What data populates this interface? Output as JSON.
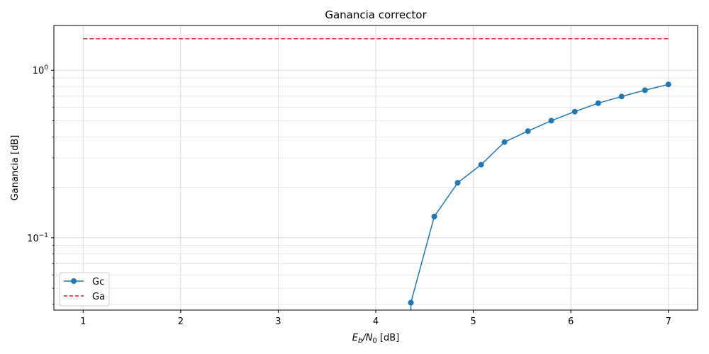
{
  "chart_data": {
    "type": "line",
    "title": "Ganancia corrector",
    "xlabel_main": "E",
    "xlabel_sub1": "b",
    "xlabel_mid": "/N",
    "xlabel_sub2": "0",
    "xlabel_tail": " [dB]",
    "ylabel": "Ganancia [dB]",
    "xlim": [
      0.7,
      7.3
    ],
    "ylim": [
      0.037,
      1.85
    ],
    "yscale": "log",
    "grid": true,
    "grid_minor_y": true,
    "legend_position": "lower-left",
    "x_ticks": [
      1,
      2,
      3,
      4,
      5,
      6,
      7
    ],
    "x_tick_labels": [
      "1",
      "2",
      "3",
      "4",
      "5",
      "6",
      "7"
    ],
    "y_ticks": [
      {
        "value": 0.1,
        "base": "10",
        "exp": "−1"
      },
      {
        "value": 1,
        "base": "10",
        "exp": "0"
      }
    ],
    "series": [
      {
        "name": "Gc",
        "color": "#1f77b4",
        "style": "solid",
        "marker": "circle",
        "x": [
          4.36,
          4.6,
          4.84,
          5.08,
          5.32,
          5.56,
          5.8,
          6.04,
          6.28,
          6.52,
          6.76,
          7.0
        ],
        "y": [
          0.041,
          0.134,
          0.213,
          0.273,
          0.373,
          0.433,
          0.5,
          0.566,
          0.636,
          0.697,
          0.76,
          0.823
        ],
        "extends_below_from_x": 4.36
      },
      {
        "name": "Ga",
        "color": "#d62728",
        "style": "dashed",
        "marker": "none",
        "x": [
          1,
          7
        ],
        "y": [
          1.54,
          1.54
        ]
      }
    ]
  }
}
